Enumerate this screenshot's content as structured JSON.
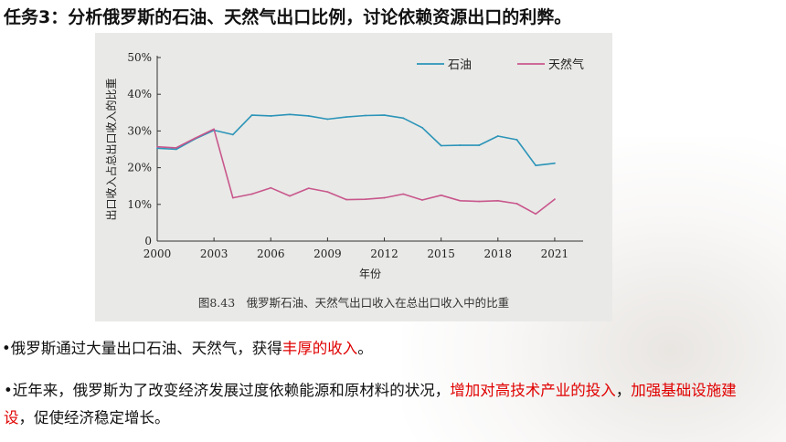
{
  "page": {
    "title": "任务3：分析俄罗斯的石油、天然气出口比例，讨论依赖资源出口的利弊。"
  },
  "figure": {
    "caption": "图8.43　俄罗斯石油、天然气出口收入在总出口收入中的比重"
  },
  "chart_data": {
    "type": "line",
    "xlabel": "年份",
    "ylabel": "出口收入占总出口收入的比重",
    "xlim": [
      2000,
      2022.5
    ],
    "ylim": [
      0,
      50
    ],
    "x_ticks": [
      "2000",
      "2003",
      "2006",
      "2009",
      "2012",
      "2015",
      "2018",
      "2021"
    ],
    "y_ticks": [
      "0",
      "10%",
      "20%",
      "30%",
      "40%",
      "50%"
    ],
    "grid": false,
    "legend_position": "top-right",
    "series": [
      {
        "name": "石油",
        "color": "#2b94b8",
        "x": [
          2000,
          2001,
          2002,
          2003,
          2004,
          2005,
          2006,
          2007,
          2008,
          2009,
          2010,
          2011,
          2012,
          2013,
          2014,
          2015,
          2016,
          2017,
          2018,
          2019,
          2020,
          2021
        ],
        "y": [
          25.3,
          25.0,
          27.8,
          30.2,
          29.0,
          34.3,
          34.1,
          34.5,
          34.1,
          33.2,
          33.8,
          34.2,
          34.3,
          33.5,
          30.9,
          26.0,
          26.1,
          26.1,
          28.6,
          27.6,
          20.6,
          21.2
        ]
      },
      {
        "name": "天然气",
        "color": "#c8578c",
        "x": [
          2000,
          2001,
          2002,
          2003,
          2004,
          2005,
          2006,
          2007,
          2008,
          2009,
          2010,
          2011,
          2012,
          2013,
          2014,
          2015,
          2016,
          2017,
          2018,
          2019,
          2020,
          2021
        ],
        "y": [
          25.7,
          25.4,
          28.0,
          30.5,
          11.8,
          12.8,
          14.5,
          12.3,
          14.4,
          13.4,
          11.3,
          11.4,
          11.8,
          12.8,
          11.2,
          12.5,
          11.0,
          10.8,
          11.0,
          10.2,
          7.4,
          11.4
        ]
      }
    ]
  },
  "bullets": [
    {
      "segments": [
        {
          "text": "•俄罗斯通过大量出口石油、天然气，获得",
          "highlight": false
        },
        {
          "text": "丰厚的收入",
          "highlight": true
        },
        {
          "text": "。",
          "highlight": false
        }
      ]
    },
    {
      "segments": [
        {
          "text": "•近年来，俄罗斯为了改变经济发展过度依赖能源和原材料的状况，",
          "highlight": false
        },
        {
          "text": "增加对高技术产业的投入",
          "highlight": true
        },
        {
          "text": "，",
          "highlight": false
        },
        {
          "text": "加强基础设施建设",
          "highlight": true
        },
        {
          "text": "，促使经济稳定增长。",
          "highlight": false
        }
      ]
    }
  ],
  "colors": {
    "highlight": "#e00000",
    "figure_background": "#e9e9e7"
  }
}
